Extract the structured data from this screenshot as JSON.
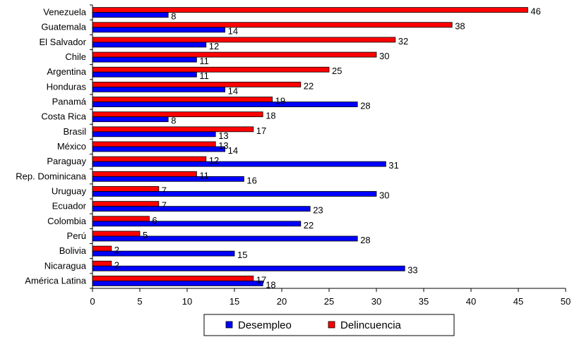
{
  "chart_data": {
    "type": "bar",
    "orientation": "horizontal",
    "categories": [
      "Venezuela",
      "Guatemala",
      "El Salvador",
      "Chile",
      "Argentina",
      "Honduras",
      "Panamá",
      "Costa Rica",
      "Brasil",
      "México",
      "Paraguay",
      "Rep. Dominicana",
      "Uruguay",
      "Ecuador",
      "Colombia",
      "Perú",
      "Bolivia",
      "Nicaragua",
      "América Latina"
    ],
    "series": [
      {
        "name": "Delincuencia",
        "color": "#ff0000",
        "values": [
          46,
          38,
          32,
          30,
          25,
          22,
          19,
          18,
          17,
          13,
          12,
          11,
          7,
          7,
          6,
          5,
          2,
          2,
          17
        ]
      },
      {
        "name": "Desempleo",
        "color": "#0000ff",
        "values": [
          8,
          14,
          12,
          11,
          11,
          14,
          28,
          8,
          13,
          14,
          31,
          16,
          30,
          23,
          22,
          28,
          15,
          33,
          18
        ]
      }
    ],
    "xlim": [
      0,
      50
    ],
    "xticks": [
      "0",
      "5",
      "10",
      "15",
      "20",
      "25",
      "30",
      "35",
      "40",
      "45",
      "50"
    ],
    "grid": false,
    "legend": {
      "position": "bottom",
      "entries": [
        "Desempleo",
        "Delincuencia"
      ]
    },
    "title": "",
    "xlabel": "",
    "ylabel": ""
  }
}
